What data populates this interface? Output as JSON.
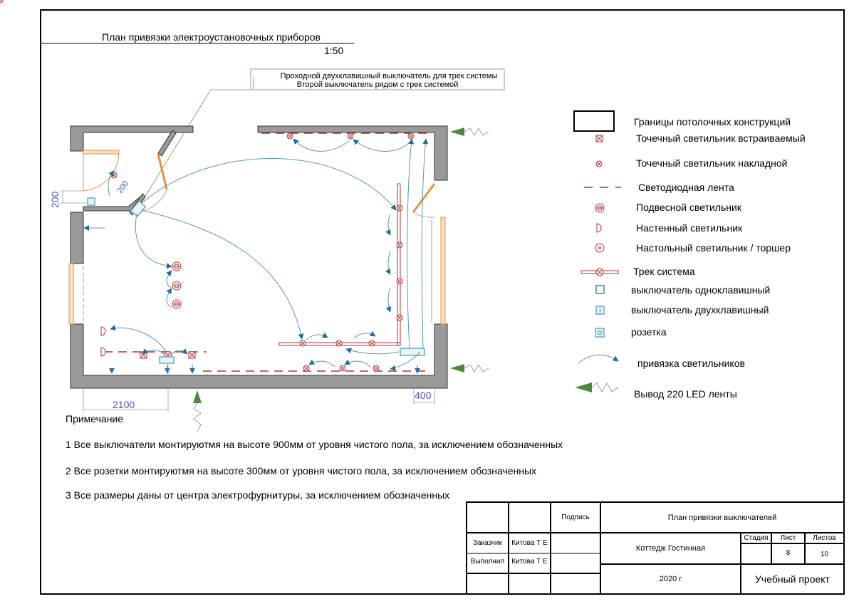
{
  "header": {
    "title": "План привязки электроустановочных приборов",
    "scale": "1:50"
  },
  "callout": {
    "line1": "Проходной двухклавишный выключатель для трек системы",
    "line2": "Второй выключатель рядом с трек системой"
  },
  "dimensions": {
    "d1": "200",
    "d2": "200",
    "d3": "2100",
    "d4": "400"
  },
  "legend": [
    {
      "icon": "ceiling-boundary-icon",
      "label": "Границы потолочных конструкций"
    },
    {
      "icon": "recessed-spotlight-icon",
      "label": "Точечный светильник встраиваемый"
    },
    {
      "icon": "surface-spotlight-icon",
      "label": "Точечный светильник накладной"
    },
    {
      "icon": "led-strip-icon",
      "label": "Светодиодная лента"
    },
    {
      "icon": "pendant-lamp-icon",
      "label": "Подвесной светильник"
    },
    {
      "icon": "wall-lamp-icon",
      "label": "Настенный светильник"
    },
    {
      "icon": "floor-lamp-icon",
      "label": "Настольный светильник / торшер"
    },
    {
      "icon": "track-system-icon",
      "label": "Трек система"
    },
    {
      "icon": "single-switch-icon",
      "label": "выключатель одноклавишный"
    },
    {
      "icon": "double-switch-icon",
      "label": "выключатель двухклавишный"
    },
    {
      "icon": "socket-icon",
      "label": "розетка"
    },
    {
      "icon": "light-binding-arrow-icon",
      "label": "привязка светильников"
    },
    {
      "icon": "led-power-output-icon",
      "label": "Вывод 220 LED ленты"
    }
  ],
  "notes": {
    "title": "Примечание",
    "items": [
      "1 Все выключатели монтируютмя на высоте 900мм от уровня чистого пола, за исключением обозначенных",
      "2 Все розетки монтируютмя на высоте 300мм от уровня чистого пола, за исключением обозначенных",
      "3 Все размеры даны от центра электрофурнитуры, за исключением обозначенных"
    ]
  },
  "title_block": {
    "signature": "Подпись",
    "drawing_name": "План привязки выключателей",
    "customer_label": "Заказчик",
    "customer_name": "Китова Т Е",
    "performer_label": "Выполнил",
    "performer_name": "Китова Т Е",
    "project": "Коттедж Гостинная",
    "stage_label": "Стадия",
    "sheet_label": "Лист",
    "sheets_label": "Листов",
    "stage": "",
    "sheet": "8",
    "sheets": "10",
    "year": "2020 г",
    "project_type": "Учебный проект"
  },
  "colors": {
    "wall": "#9a9a9a",
    "fixture": "#b03030",
    "arrow": "#1a6fa0",
    "link": "#5a9aaa",
    "door": "#e89040",
    "dimension": "#5050c8",
    "led_out": "#4a8a3a"
  }
}
